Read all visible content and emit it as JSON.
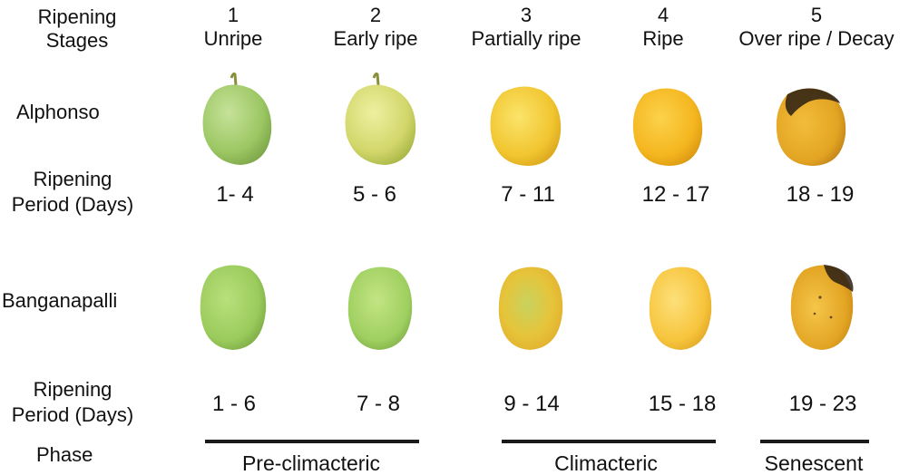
{
  "header": {
    "label_line1": "Ripening",
    "label_line2": "Stages"
  },
  "stages": [
    {
      "number": "1",
      "name": "Unripe"
    },
    {
      "number": "2",
      "name": "Early ripe"
    },
    {
      "number": "3",
      "name": "Partially ripe"
    },
    {
      "number": "4",
      "name": "Ripe"
    },
    {
      "number": "5",
      "name": "Over ripe / Decay"
    }
  ],
  "varieties": [
    {
      "name": "Alphonso",
      "period_label_line1": "Ripening",
      "period_label_line2": "Period (Days)",
      "periods": [
        "1- 4",
        "5 - 6",
        "7 - 11",
        "12 - 17",
        "18 - 19"
      ]
    },
    {
      "name": "Banganapalli",
      "period_label_line1": "Ripening",
      "period_label_line2": "Period (Days)",
      "periods": [
        "1 - 6",
        "7 - 8",
        "9 - 14",
        "15 - 18",
        "19 - 23"
      ]
    }
  ],
  "phase": {
    "label": "Phase",
    "items": [
      "Pre-climacteric",
      "Climacteric",
      "Senescent"
    ]
  },
  "colors": {
    "unripe": "#a8cf6e",
    "early_ripe": "#d3d76a",
    "partially_ripe": "#f2c534",
    "ripe": "#f4b61f",
    "decay": "#e3a423",
    "decay_spot": "#2a1f14"
  }
}
